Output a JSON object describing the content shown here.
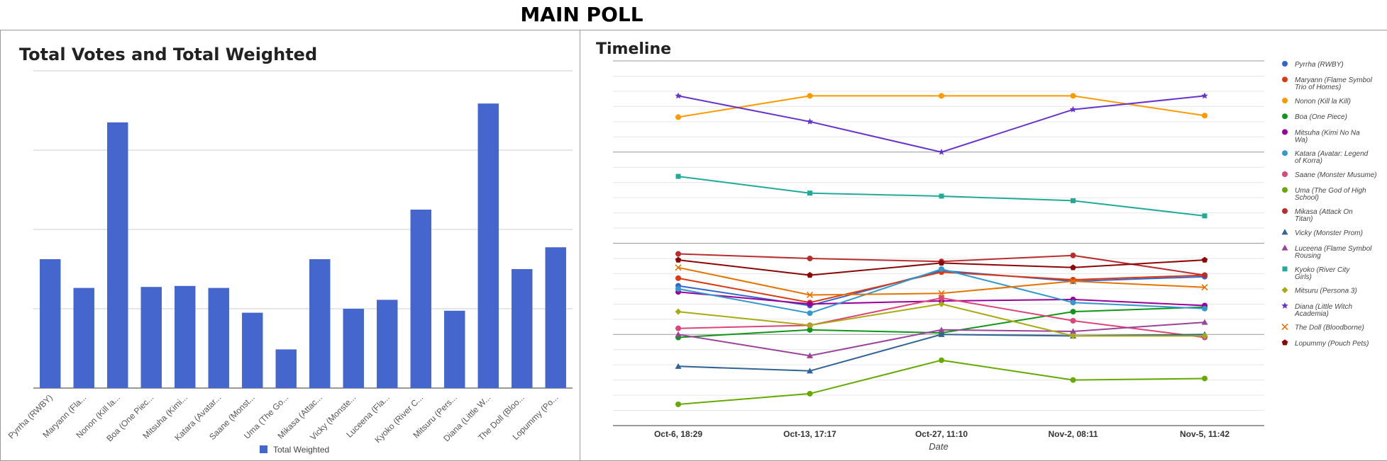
{
  "page": {
    "title": "MAIN POLL"
  },
  "chart_data": [
    {
      "type": "bar",
      "title": "Total Votes and Total Weighted",
      "categories": [
        "Pyrrha (RWBY)",
        "Maryann (Fla...",
        "Nonon (Kill la...",
        "Boa (One Piec...",
        "Mitsuha (Kimi...",
        "Katara (Avatar...",
        "Saane (Monst...",
        "Uma (The Go...",
        "Mikasa (Attac...",
        "Vicky (Monste...",
        "Luceena (Fla...",
        "Kyoko (River C...",
        "Mitsuru (Pers...",
        "Diana (Little W...",
        "The Doll (Bloo...",
        "Lopummy (Po..."
      ],
      "series": [
        {
          "name": "Total Weighted",
          "color": "#4567cd",
          "values": [
            65,
            50.5,
            134,
            51,
            51.5,
            50.5,
            38,
            19.5,
            65,
            40,
            44.5,
            90,
            39,
            143.5,
            60,
            71
          ]
        }
      ],
      "ylim": [
        0,
        160
      ],
      "gridlines": 4,
      "grid": true,
      "legend": "bottom"
    },
    {
      "type": "line",
      "title": "Timeline",
      "xlabel": "Date",
      "x": [
        "Oct-6, 18:29",
        "Oct-13, 17:17",
        "Oct-27, 11:10",
        "Nov-2, 08:11",
        "Nov-5, 11:42"
      ],
      "ylim": [
        0,
        24
      ],
      "grid": true,
      "legend": "right",
      "series": [
        {
          "name": "Pyrrha (RWBY)",
          "color": "#3366cc",
          "marker": "circle",
          "values": [
            9.2,
            7.9,
            10.2,
            9.5,
            9.8
          ]
        },
        {
          "name": "Maryann (Flame Symbol Trio of Homes)",
          "color": "#dc3912",
          "marker": "circle",
          "values": [
            9.7,
            8.1,
            10.1,
            9.6,
            9.9
          ]
        },
        {
          "name": "Nonon (Kill la Kill)",
          "color": "#ff9900",
          "marker": "circle",
          "values": [
            20.3,
            21.7,
            21.7,
            21.7,
            20.4
          ]
        },
        {
          "name": "Boa (One Piece)",
          "color": "#109618",
          "marker": "circle",
          "values": [
            5.8,
            6.3,
            6.1,
            7.5,
            7.8
          ]
        },
        {
          "name": "Mitsuha (Kimi No Na Wa)",
          "color": "#990099",
          "marker": "circle",
          "values": [
            8.8,
            8.0,
            8.2,
            8.3,
            7.9
          ]
        },
        {
          "name": "Katara (Avatar: Legend of Korra)",
          "color": "#3399cc",
          "marker": "circle",
          "values": [
            9.0,
            7.4,
            10.3,
            8.1,
            7.7
          ]
        },
        {
          "name": "Saane (Monster Musume)",
          "color": "#dd4477",
          "marker": "circle",
          "values": [
            6.4,
            6.6,
            8.4,
            6.9,
            5.8
          ]
        },
        {
          "name": "Uma  (The God of High School)",
          "color": "#66aa00",
          "marker": "circle",
          "values": [
            1.4,
            2.1,
            4.3,
            3.0,
            3.1
          ]
        },
        {
          "name": "Mikasa (Attack On Titan)",
          "color": "#b82e2e",
          "marker": "circle",
          "values": [
            11.3,
            11.0,
            10.8,
            11.2,
            9.9
          ]
        },
        {
          "name": "Vicky (Monster Prom)",
          "color": "#316395",
          "marker": "triangle",
          "values": [
            3.9,
            3.6,
            6.0,
            5.9,
            6.0
          ]
        },
        {
          "name": "Luceena (Flame Symbol Rousing",
          "color": "#994499",
          "marker": "triangle",
          "values": [
            6.0,
            4.6,
            6.3,
            6.2,
            6.8
          ]
        },
        {
          "name": "Kyoko (River City Girls)",
          "color": "#22aa99",
          "marker": "square",
          "values": [
            16.4,
            15.3,
            15.1,
            14.8,
            13.8
          ]
        },
        {
          "name": "Mitsuru (Persona 3)",
          "color": "#aaaa11",
          "marker": "diamond",
          "values": [
            7.5,
            6.6,
            8.0,
            5.9,
            5.9
          ]
        },
        {
          "name": "Diana (Little Witch Academia)",
          "color": "#6633cc",
          "marker": "star",
          "values": [
            21.7,
            20.0,
            18.0,
            20.8,
            21.7
          ]
        },
        {
          "name": "The Doll (Bloodborne)",
          "color": "#e67300",
          "marker": "x",
          "values": [
            10.4,
            8.6,
            8.7,
            9.5,
            9.1
          ]
        },
        {
          "name": "Lopummy (Pouch Pets)",
          "color": "#8b0707",
          "marker": "pentagon",
          "values": [
            10.9,
            9.9,
            10.7,
            10.4,
            10.9
          ]
        }
      ]
    }
  ]
}
